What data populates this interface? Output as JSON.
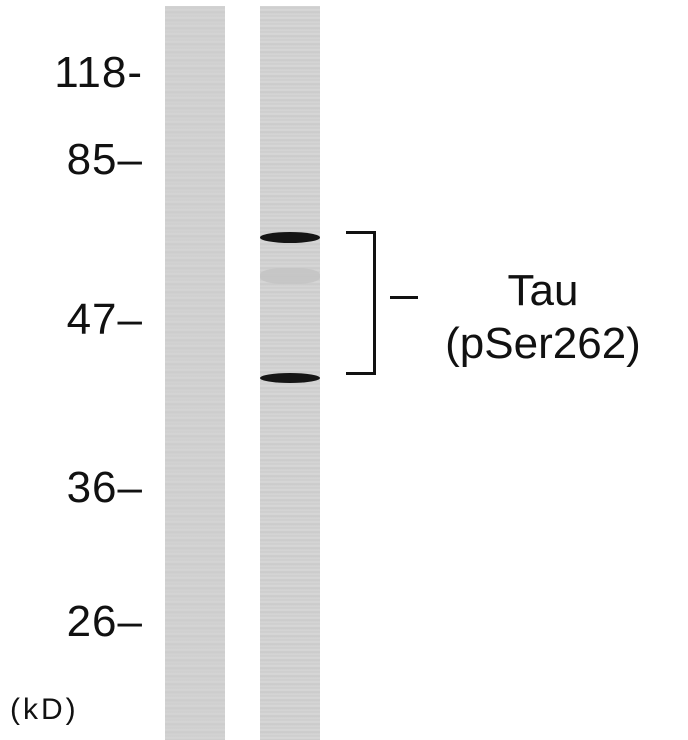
{
  "markers": {
    "m118": "118-",
    "m85": "85–",
    "m47": "47–",
    "m36": "36–",
    "m26": "26–",
    "unit": "(kD)"
  },
  "protein": {
    "name": "Tau",
    "modification": "(pSer262)"
  },
  "lanes": [
    {
      "id": "lane-1",
      "bands": []
    },
    {
      "id": "lane-2",
      "bands": [
        "upper",
        "lower"
      ]
    }
  ]
}
